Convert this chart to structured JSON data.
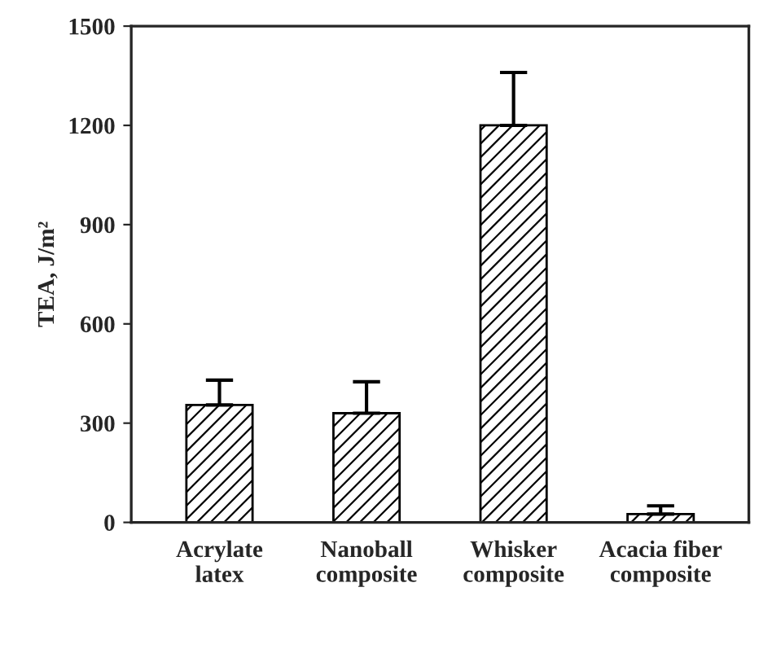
{
  "chart_data": {
    "type": "bar",
    "ylabel": "TEA, J/m²",
    "categories": [
      "Acrylate\nlatex",
      "Nanoball\ncomposite",
      "Whisker\ncomposite",
      "Acacia fiber\ncomposite"
    ],
    "values": [
      355,
      330,
      1200,
      25
    ],
    "errors": [
      [
        355,
        430
      ],
      [
        330,
        425
      ],
      [
        1200,
        1360
      ],
      [
        25,
        50
      ]
    ],
    "color": "#000000",
    "ylim": [
      0,
      1500
    ],
    "yticks": [
      0,
      300,
      600,
      900,
      1200,
      1500
    ],
    "grid": false
  }
}
